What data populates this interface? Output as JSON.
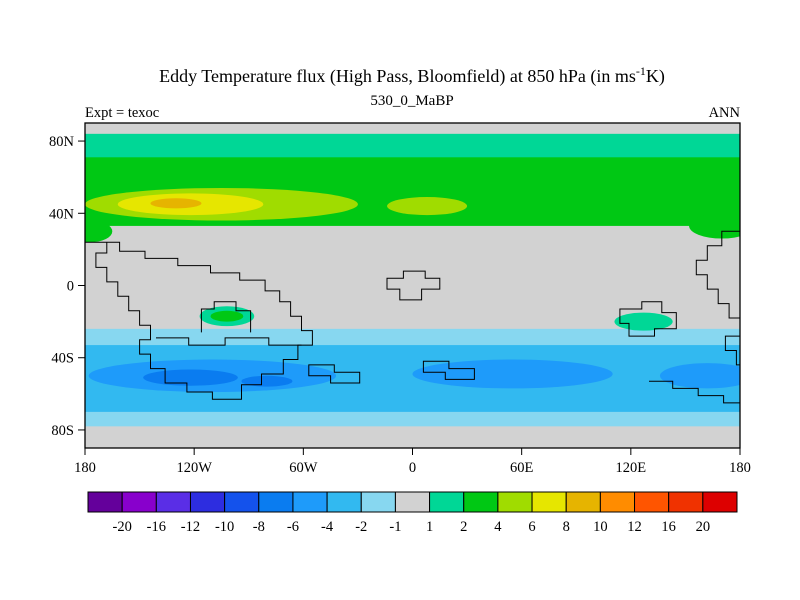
{
  "header": {
    "title_pre": "Eddy Temperature flux (High Pass, Bloomfield) at 850 hPa (in ms",
    "title_sup": "-1",
    "title_post": "K)",
    "subtitle": "530_0_MaBP",
    "left_label": "Expt = texoc",
    "right_label": "ANN"
  },
  "chart_data": {
    "type": "heatmap",
    "title": "Eddy Temperature flux (High Pass, Bloomfield) at 850 hPa (in ms-1 K)",
    "subtitle": "530_0_MaBP",
    "experiment": "texoc",
    "season": "ANN",
    "level": "850 hPa",
    "units": "ms-1K",
    "x_axis": {
      "range": [
        -180,
        180
      ],
      "ticks": [
        -180,
        -120,
        -60,
        0,
        60,
        120,
        180
      ],
      "tick_labels": [
        "180",
        "120W",
        "60W",
        "0",
        "60E",
        "120E",
        "180"
      ]
    },
    "y_axis": {
      "range": [
        -90,
        90
      ],
      "ticks": [
        80,
        40,
        0,
        -40,
        -80
      ],
      "tick_labels": [
        "80N",
        "40N",
        "0",
        "40S",
        "80S"
      ]
    },
    "background_color": "#d2d2d2",
    "colorbar": {
      "boundary_labels": [
        "-20",
        "-16",
        "-12",
        "-10",
        "-8",
        "-6",
        "-4",
        "-2",
        "-1",
        "1",
        "2",
        "4",
        "6",
        "8",
        "10",
        "12",
        "16",
        "20"
      ],
      "colors": [
        "#64009b",
        "#8800cc",
        "#5a2ee6",
        "#2d2de0",
        "#1452ec",
        "#0a7cf0",
        "#1e9bfa",
        "#32b9f0",
        "#87d7f0",
        "#d2d2d2",
        "#00d796",
        "#00c814",
        "#a0dc00",
        "#e6e600",
        "#e6b400",
        "#ff8c00",
        "#ff5500",
        "#f03200",
        "#dd0000"
      ]
    },
    "regions": [
      {
        "name": "nh-teal-band",
        "shape": "rect",
        "lon": [
          -180,
          180
        ],
        "lat": [
          68,
          84
        ],
        "color_index": 10
      },
      {
        "name": "nh-green-band",
        "shape": "rect",
        "lon": [
          -180,
          180
        ],
        "lat": [
          33,
          71
        ],
        "color_index": 11
      },
      {
        "name": "nh-green-bulge-east",
        "shape": "ellipse",
        "center": [
          170,
          33
        ],
        "r": [
          18,
          7
        ],
        "color_index": 11
      },
      {
        "name": "nh-green-bulge-west",
        "shape": "ellipse",
        "center": [
          -177,
          30
        ],
        "r": [
          12,
          6
        ],
        "color_index": 11
      },
      {
        "name": "nh-yellowgreen-blob",
        "shape": "ellipse",
        "center": [
          -105,
          45
        ],
        "r": [
          75,
          9
        ],
        "color_index": 12
      },
      {
        "name": "nh-yellowgreen-small",
        "shape": "ellipse",
        "center": [
          8,
          44
        ],
        "r": [
          22,
          5
        ],
        "color_index": 12
      },
      {
        "name": "nh-yellow-core",
        "shape": "ellipse",
        "center": [
          -122,
          45
        ],
        "r": [
          40,
          6
        ],
        "color_index": 13
      },
      {
        "name": "nh-orange-core",
        "shape": "ellipse",
        "center": [
          -130,
          45.5
        ],
        "r": [
          14,
          2.8
        ],
        "color_index": 14
      },
      {
        "name": "sh-lightblue-band",
        "shape": "rect",
        "lon": [
          -180,
          180
        ],
        "lat": [
          -78,
          -24
        ],
        "color_index": 8
      },
      {
        "name": "sh-blue-band",
        "shape": "rect",
        "lon": [
          -180,
          180
        ],
        "lat": [
          -70,
          -33
        ],
        "color_index": 7
      },
      {
        "name": "sh-strongblue-west",
        "shape": "ellipse",
        "center": [
          -110,
          -50
        ],
        "r": [
          68,
          9
        ],
        "color_index": 6
      },
      {
        "name": "sh-strongblue-east",
        "shape": "ellipse",
        "center": [
          55,
          -49
        ],
        "r": [
          55,
          8
        ],
        "color_index": 6
      },
      {
        "name": "sh-strongblue-fareast",
        "shape": "ellipse",
        "center": [
          162,
          -50
        ],
        "r": [
          26,
          7
        ],
        "color_index": 6
      },
      {
        "name": "sh-deepblue-core-a",
        "shape": "ellipse",
        "center": [
          -122,
          -51
        ],
        "r": [
          26,
          4.5
        ],
        "color_index": 5
      },
      {
        "name": "sh-deepblue-core-b",
        "shape": "ellipse",
        "center": [
          -80,
          -53
        ],
        "r": [
          14,
          3
        ],
        "color_index": 5
      },
      {
        "name": "sh-teal-patch-west",
        "shape": "ellipse",
        "center": [
          -102,
          -17
        ],
        "r": [
          15,
          5.5
        ],
        "color_index": 10
      },
      {
        "name": "sh-green-patch-west",
        "shape": "ellipse",
        "center": [
          -102,
          -17
        ],
        "r": [
          9,
          3
        ],
        "color_index": 11
      },
      {
        "name": "sh-teal-patch-east",
        "shape": "ellipse",
        "center": [
          127,
          -20
        ],
        "r": [
          16,
          5
        ],
        "color_index": 10
      }
    ],
    "coastlines": [
      {
        "closed": true,
        "points": [
          [
            -180,
            24
          ],
          [
            -168,
            24
          ],
          [
            -168,
            18
          ],
          [
            -174,
            18
          ],
          [
            -174,
            10
          ],
          [
            -168,
            10
          ],
          [
            -168,
            2
          ],
          [
            -162,
            2
          ],
          [
            -162,
            -6
          ],
          [
            -156,
            -6
          ],
          [
            -156,
            -14
          ],
          [
            -150,
            -14
          ],
          [
            -150,
            -22
          ],
          [
            -144,
            -22
          ],
          [
            -144,
            -30
          ],
          [
            -150,
            -30
          ],
          [
            -150,
            -38
          ],
          [
            -144,
            -38
          ],
          [
            -144,
            -46
          ],
          [
            -136,
            -46
          ],
          [
            -136,
            -54
          ],
          [
            -124,
            -54
          ],
          [
            -124,
            -59
          ],
          [
            -110,
            -59
          ],
          [
            -110,
            -63
          ],
          [
            -94,
            -63
          ],
          [
            -94,
            -55
          ],
          [
            -83,
            -55
          ],
          [
            -83,
            -49
          ],
          [
            -71,
            -49
          ],
          [
            -71,
            -41
          ],
          [
            -63,
            -41
          ],
          [
            -63,
            -33
          ],
          [
            -55,
            -33
          ],
          [
            -55,
            -25
          ],
          [
            -61,
            -25
          ],
          [
            -61,
            -17
          ],
          [
            -67,
            -17
          ],
          [
            -67,
            -9
          ],
          [
            -73,
            -9
          ],
          [
            -73,
            -3
          ],
          [
            -81,
            -3
          ],
          [
            -81,
            3
          ],
          [
            -95,
            3
          ],
          [
            -95,
            7
          ],
          [
            -111,
            7
          ],
          [
            -111,
            11
          ],
          [
            -129,
            11
          ],
          [
            -129,
            15
          ],
          [
            -147,
            15
          ],
          [
            -147,
            19
          ],
          [
            -161,
            19
          ],
          [
            -161,
            24
          ]
        ]
      },
      {
        "closed": false,
        "points": [
          [
            -116,
            -26
          ],
          [
            -116,
            -13
          ],
          [
            -109,
            -13
          ],
          [
            -109,
            -9
          ],
          [
            -97,
            -9
          ],
          [
            -97,
            -14
          ],
          [
            -89,
            -14
          ],
          [
            -89,
            -26
          ]
        ]
      },
      {
        "closed": false,
        "points": [
          [
            -141,
            -29
          ],
          [
            -123,
            -29
          ],
          [
            -123,
            -33
          ],
          [
            -103,
            -33
          ],
          [
            -103,
            -29
          ],
          [
            -79,
            -29
          ],
          [
            -79,
            -33
          ],
          [
            -61,
            -33
          ]
        ]
      },
      {
        "closed": true,
        "points": [
          [
            -14,
            4
          ],
          [
            -5,
            4
          ],
          [
            -5,
            8
          ],
          [
            7,
            8
          ],
          [
            7,
            4
          ],
          [
            15,
            4
          ],
          [
            15,
            -2
          ],
          [
            5,
            -2
          ],
          [
            5,
            -8
          ],
          [
            -7,
            -8
          ],
          [
            -7,
            -2
          ],
          [
            -14,
            -2
          ]
        ]
      },
      {
        "closed": true,
        "points": [
          [
            -57,
            -44
          ],
          [
            -43,
            -44
          ],
          [
            -43,
            -48
          ],
          [
            -29,
            -48
          ],
          [
            -29,
            -54
          ],
          [
            -45,
            -54
          ],
          [
            -45,
            -50
          ],
          [
            -57,
            -50
          ]
        ]
      },
      {
        "closed": true,
        "points": [
          [
            6,
            -42
          ],
          [
            20,
            -42
          ],
          [
            20,
            -46
          ],
          [
            34,
            -46
          ],
          [
            34,
            -52
          ],
          [
            18,
            -52
          ],
          [
            18,
            -48
          ],
          [
            6,
            -48
          ]
        ]
      },
      {
        "closed": false,
        "points": [
          [
            180,
            30
          ],
          [
            170,
            30
          ],
          [
            170,
            22
          ],
          [
            162,
            22
          ],
          [
            162,
            14
          ],
          [
            156,
            14
          ],
          [
            156,
            6
          ],
          [
            162,
            6
          ],
          [
            162,
            -2
          ],
          [
            168,
            -2
          ],
          [
            168,
            -10
          ],
          [
            174,
            -10
          ],
          [
            174,
            -18
          ],
          [
            180,
            -18
          ]
        ]
      },
      {
        "closed": false,
        "points": [
          [
            180,
            -28
          ],
          [
            172,
            -28
          ],
          [
            172,
            -36
          ],
          [
            178,
            -36
          ],
          [
            178,
            -44
          ],
          [
            180,
            -44
          ]
        ]
      },
      {
        "closed": true,
        "points": [
          [
            114,
            -13
          ],
          [
            126,
            -13
          ],
          [
            126,
            -9
          ],
          [
            137,
            -9
          ],
          [
            137,
            -15
          ],
          [
            145,
            -15
          ],
          [
            145,
            -24
          ],
          [
            133,
            -24
          ],
          [
            133,
            -28
          ],
          [
            119,
            -28
          ],
          [
            119,
            -21
          ],
          [
            114,
            -21
          ]
        ]
      },
      {
        "closed": false,
        "points": [
          [
            130,
            -53
          ],
          [
            143,
            -53
          ],
          [
            143,
            -57
          ],
          [
            157,
            -57
          ],
          [
            157,
            -61
          ],
          [
            171,
            -61
          ],
          [
            171,
            -65
          ],
          [
            180,
            -65
          ]
        ]
      }
    ]
  }
}
